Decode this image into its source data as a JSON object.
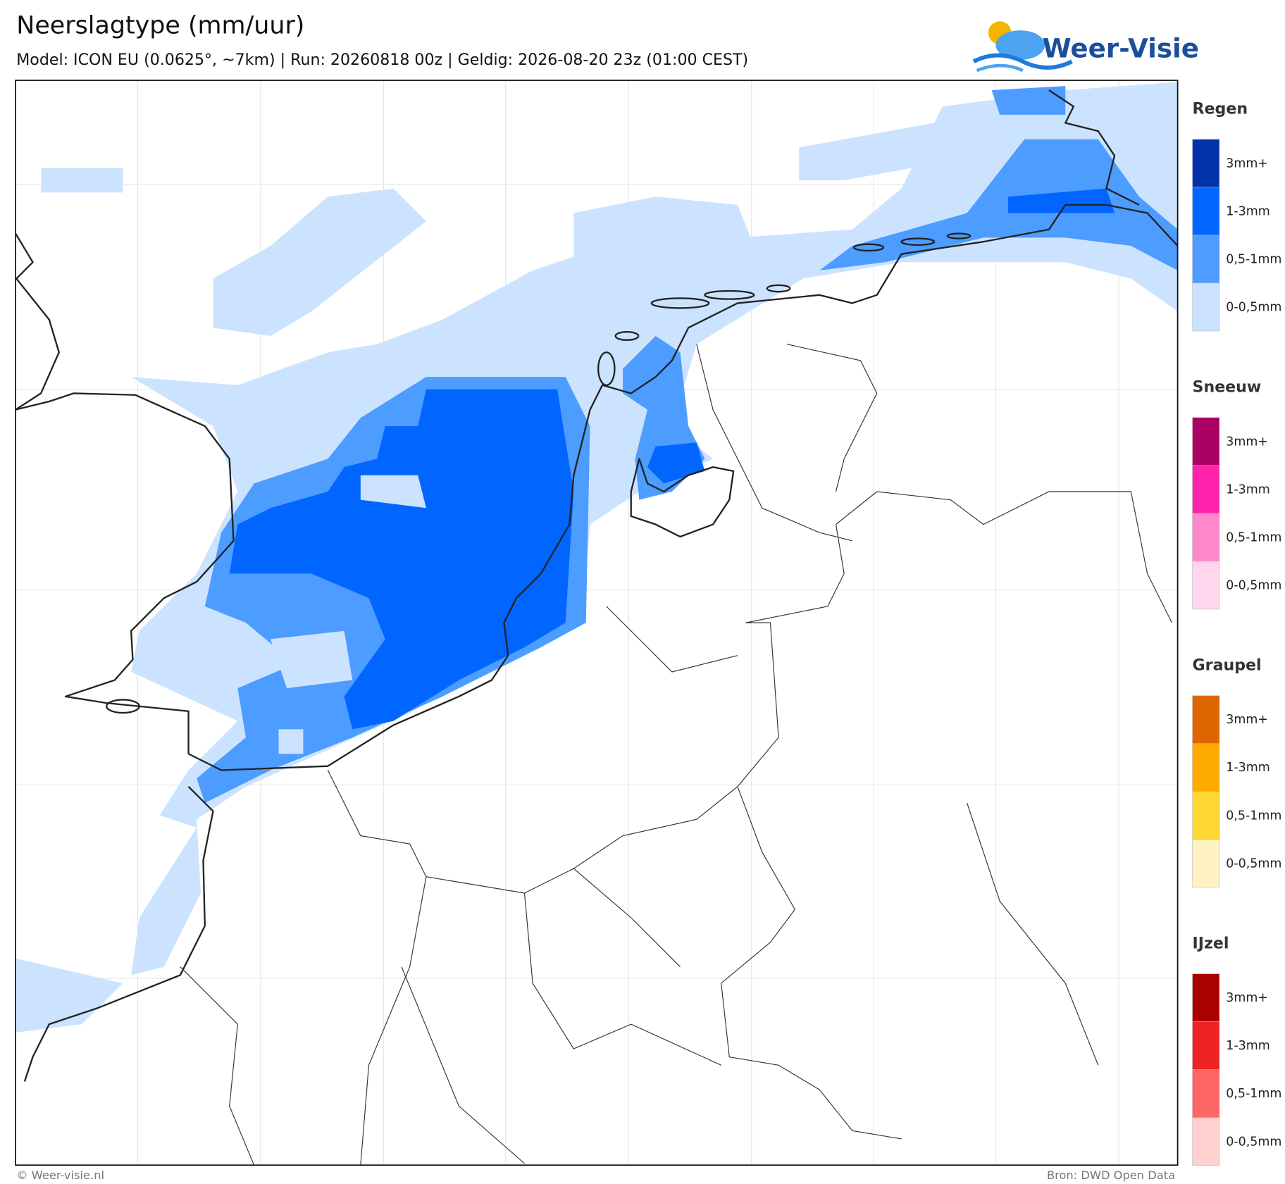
{
  "header": {
    "title": "Neerslagtype (mm/uur)",
    "subtitle": "Model: ICON EU (0.0625°, ~7km)  |  Run: 20260818 00z  |  Geldig: 2026-08-20 23z (01:00 CEST)"
  },
  "logo": {
    "text": "Weer-Visie"
  },
  "legend": {
    "groups": [
      {
        "title": "Regen",
        "items": [
          {
            "label": "3mm+",
            "color": "#0033aa"
          },
          {
            "label": "1-3mm",
            "color": "#0066ff"
          },
          {
            "label": "0,5-1mm",
            "color": "#4d9cff"
          },
          {
            "label": "0-0,5mm",
            "color": "#cce3ff"
          }
        ]
      },
      {
        "title": "Sneeuw",
        "items": [
          {
            "label": "3mm+",
            "color": "#aa0066"
          },
          {
            "label": "1-3mm",
            "color": "#ff22aa"
          },
          {
            "label": "0,5-1mm",
            "color": "#ff88cc"
          },
          {
            "label": "0-0,5mm",
            "color": "#ffd6ec"
          }
        ]
      },
      {
        "title": "Graupel",
        "items": [
          {
            "label": "3mm+",
            "color": "#dd6600"
          },
          {
            "label": "1-3mm",
            "color": "#ffaa00"
          },
          {
            "label": "0,5-1mm",
            "color": "#ffd633"
          },
          {
            "label": "0-0,5mm",
            "color": "#fff2c2"
          }
        ]
      },
      {
        "title": "IJzel",
        "items": [
          {
            "label": "3mm+",
            "color": "#aa0000"
          },
          {
            "label": "1-3mm",
            "color": "#ee2222"
          },
          {
            "label": "0,5-1mm",
            "color": "#ff6666"
          },
          {
            "label": "0-0,5mm",
            "color": "#ffd0d0"
          }
        ]
      }
    ]
  },
  "footer": {
    "left": "© Weer-visie.nl",
    "right": "Bron: DWD Open Data"
  }
}
